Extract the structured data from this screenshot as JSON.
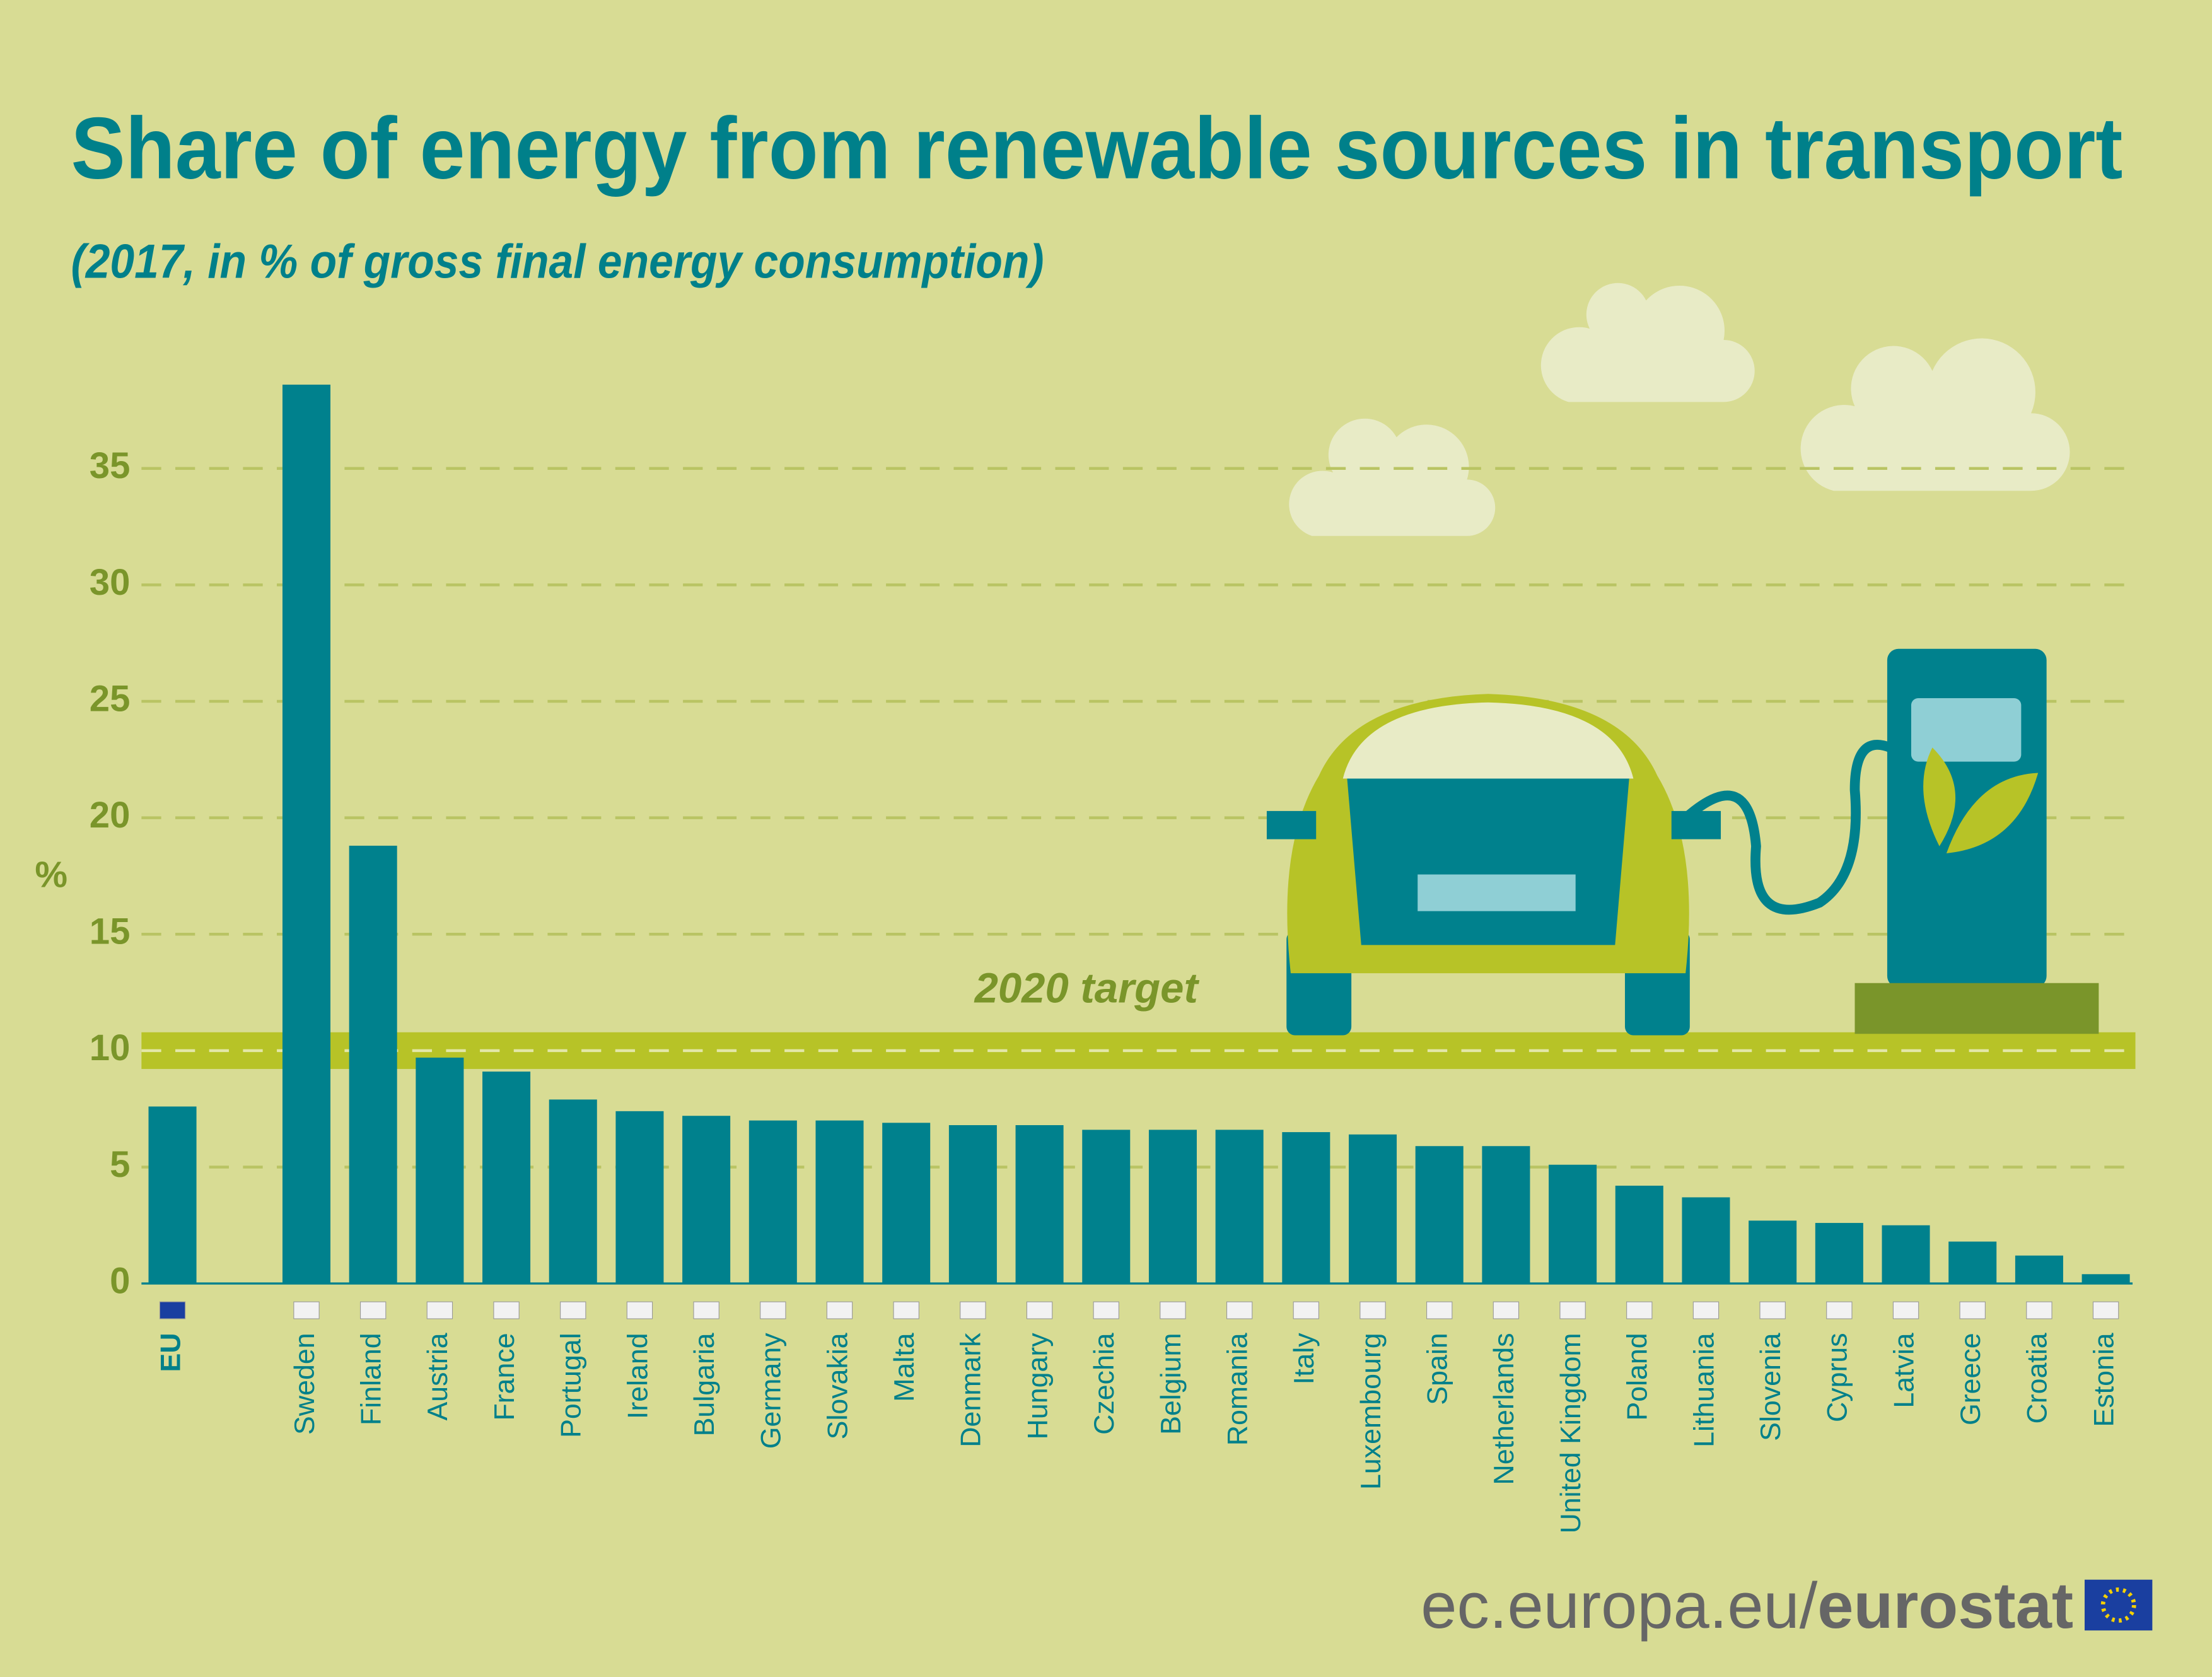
{
  "chart_data": {
    "type": "bar",
    "title": "Share of energy from renewable sources in transport",
    "subtitle": "(2017, in % of gross final energy consumption)",
    "y_label": "%",
    "categories": [
      "EU",
      "Sweden",
      "Finland",
      "Austria",
      "France",
      "Portugal",
      "Ireland",
      "Bulgaria",
      "Germany",
      "Slovakia",
      "Malta",
      "Denmark",
      "Hungary",
      "Czechia",
      "Belgium",
      "Romania",
      "Italy",
      "Luxembourg",
      "Spain",
      "Netherlands",
      "United Kingdom",
      "Poland",
      "Lithuania",
      "Slovenia",
      "Cyprus",
      "Latvia",
      "Greece",
      "Croatia",
      "Estonia"
    ],
    "values": [
      7.6,
      38.6,
      18.8,
      9.7,
      9.1,
      7.9,
      7.4,
      7.2,
      7.0,
      7.0,
      6.9,
      6.8,
      6.8,
      6.6,
      6.6,
      6.6,
      6.5,
      6.4,
      5.9,
      5.9,
      5.1,
      4.2,
      3.7,
      2.7,
      2.6,
      2.5,
      1.8,
      1.2,
      0.4
    ],
    "color": "#00818d",
    "ylim": [
      0,
      40
    ],
    "yticks": [
      0,
      5,
      10,
      15,
      20,
      25,
      30,
      35
    ],
    "grid": true,
    "target": {
      "value": 10,
      "label": "2020 target"
    }
  },
  "footer": {
    "site": "ec.europa.eu/",
    "brand": "eurostat"
  }
}
